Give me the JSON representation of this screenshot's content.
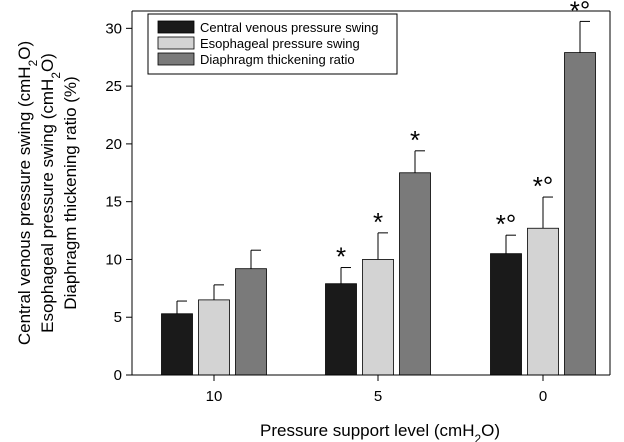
{
  "chart_data": {
    "type": "bar",
    "categories": [
      "10",
      "5",
      "0"
    ],
    "series": [
      {
        "name": "Central venous pressure swing",
        "color": "#1a1a1a",
        "values": [
          5.3,
          7.9,
          10.5
        ],
        "errors": [
          1.1,
          1.4,
          1.6
        ],
        "annotations": [
          "",
          "*",
          "*°"
        ]
      },
      {
        "name": "Esophageal pressure swing",
        "color": "#d3d3d3",
        "values": [
          6.5,
          10.0,
          12.7
        ],
        "errors": [
          1.3,
          2.3,
          2.7
        ],
        "annotations": [
          "",
          "*",
          "*°"
        ]
      },
      {
        "name": "Diaphragm thickening ratio",
        "color": "#7a7a7a",
        "values": [
          9.2,
          17.5,
          27.9
        ],
        "errors": [
          1.6,
          1.9,
          2.7
        ],
        "annotations": [
          "",
          "*",
          "*°"
        ]
      }
    ],
    "xlabel": "Pressure support level (cmH2O)",
    "ylabel_lines": [
      "Central venous pressure swing (cmH2O)",
      "Esophageal pressure swing (cmH2O)",
      "Diaphragm thickening ratio (%)"
    ],
    "yticks": [
      0,
      5,
      10,
      15,
      20,
      25,
      30
    ],
    "ylim": [
      0,
      31.5
    ],
    "grid": false,
    "legend_position": "top-left"
  }
}
